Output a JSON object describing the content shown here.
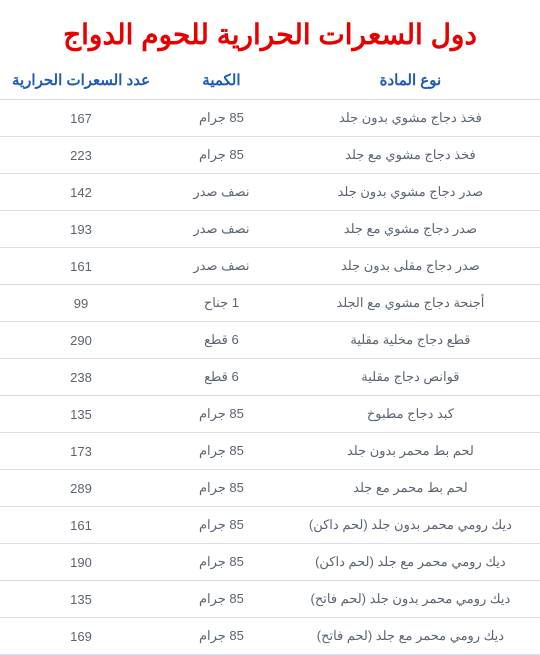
{
  "title": "دول السعرات الحرارية للحوم الدواج",
  "columns": {
    "material": "نوع المادة",
    "qty": "الكمية",
    "calories": "عدد السعرات الحرارية"
  },
  "rows": [
    {
      "material": "فخذ دجاج مشوي بدون جلد",
      "qty": "85 جرام",
      "calories": "167"
    },
    {
      "material": "فخذ دجاج مشوي مع جلد",
      "qty": "85 جرام",
      "calories": "223"
    },
    {
      "material": "صدر دجاج مشوي بدون جلد",
      "qty": "نصف صدر",
      "calories": "142"
    },
    {
      "material": "صدر دجاج مشوي مع جلد",
      "qty": "نصف صدر",
      "calories": "193"
    },
    {
      "material": "صدر دجاج مقلى بدون جلد",
      "qty": "نصف صدر",
      "calories": "161"
    },
    {
      "material": "أجنحة دجاج مشوي مع الجلد",
      "qty": "1 جناح",
      "calories": "99"
    },
    {
      "material": "قطع دجاج مخلية مقلية",
      "qty": "6 قطع",
      "calories": "290"
    },
    {
      "material": "قوانص دجاج مقلية",
      "qty": "6 قطع",
      "calories": "238"
    },
    {
      "material": "كبد دجاج مطبوخ",
      "qty": "85 جرام",
      "calories": "135"
    },
    {
      "material": "لحم بط محمر بدون جلد",
      "qty": "85 جرام",
      "calories": "173"
    },
    {
      "material": "لحم بط محمر مع جلد",
      "qty": "85 جرام",
      "calories": "289"
    },
    {
      "material": "ديك رومي محمر بدون جلد (لحم داكن)",
      "qty": "85 جرام",
      "calories": "161"
    },
    {
      "material": "ديك رومي محمر مع جلد (لحم داكن)",
      "qty": "85 جرام",
      "calories": "190"
    },
    {
      "material": "ديك رومي محمر بدون جلد (لحم فاتح)",
      "qty": "85 جرام",
      "calories": "135"
    },
    {
      "material": "ديك رومي محمر مع جلد (لحم فاتح)",
      "qty": "85 جرام",
      "calories": "169"
    }
  ],
  "style": {
    "title_color": "#e60000",
    "header_color": "#1e5bb8",
    "cell_color": "#5a6470",
    "border_color": "#d9e0ec",
    "background": "#ffffff"
  }
}
